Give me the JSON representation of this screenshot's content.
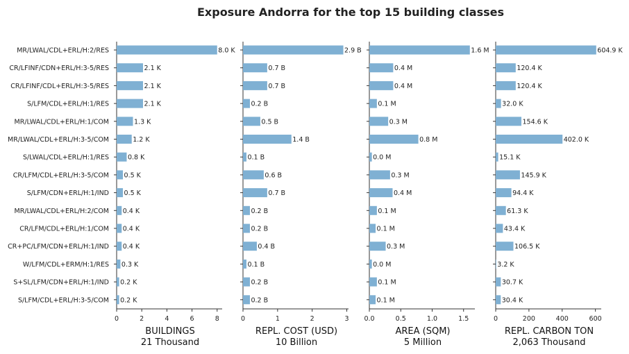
{
  "title": "Exposure Andorra for the top 15 building classes",
  "colors": {
    "bar": "#7fb0d3",
    "axis": "#333333",
    "text": "#222222"
  },
  "chart_data": {
    "type": "bar",
    "orientation": "horizontal",
    "title": "Exposure Andorra for the top 15 building classes",
    "categories": [
      "MR/LWAL/CDL+ERL/H:2/RES",
      "CR/LFINF/CDN+ERL/H:3-5/RES",
      "CR/LFINF/CDL+ERL/H:3-5/RES",
      "S/LFM/CDL+ERL/H:1/RES",
      "MR/LWAL/CDL+ERL/H:1/COM",
      "MR/LWAL/CDL+ERL/H:3-5/COM",
      "S/LWAL/CDL+ERL/H:1/RES",
      "CR/LFM/CDL+ERL/H:3-5/COM",
      "S/LFM/CDN+ERL/H:1/IND",
      "MR/LWAL/CDL+ERL/H:2/COM",
      "CR/LFM/CDL+ERL/H:1/COM",
      "CR+PC/LFM/CDN+ERL/H:1/IND",
      "W/LFM/CDL+ERM/H:1/RES",
      "S+SL/LFM/CDN+ERL/H:1/IND",
      "S/LFM/CDL+ERL/H:3-5/COM"
    ],
    "panels": [
      {
        "xlabel": "BUILDINGS",
        "total": "21 Thousand",
        "xlim": [
          0,
          8.4
        ],
        "ticks": [
          0,
          2,
          4,
          6,
          8
        ],
        "tick_labels": [
          "0",
          "2",
          "4",
          "6",
          "8"
        ],
        "values": [
          8.0,
          2.1,
          2.1,
          2.1,
          1.3,
          1.2,
          0.8,
          0.5,
          0.5,
          0.4,
          0.4,
          0.4,
          0.3,
          0.2,
          0.2
        ],
        "value_labels": [
          "8.0 K",
          "2.1 K",
          "2.1 K",
          "2.1 K",
          "1.3 K",
          "1.2 K",
          "0.8 K",
          "0.5 K",
          "0.5 K",
          "0.4 K",
          "0.4 K",
          "0.4 K",
          "0.3 K",
          "0.2 K",
          "0.2 K"
        ]
      },
      {
        "xlabel": "REPL. COST (USD)",
        "total": "10 Billion",
        "xlim": [
          0,
          3.05
        ],
        "ticks": [
          0,
          1,
          2,
          3
        ],
        "tick_labels": [
          "0",
          "1",
          "2",
          "3"
        ],
        "values": [
          2.9,
          0.7,
          0.7,
          0.2,
          0.5,
          1.4,
          0.1,
          0.6,
          0.7,
          0.2,
          0.2,
          0.4,
          0.1,
          0.2,
          0.2
        ],
        "value_labels": [
          "2.9 B",
          "0.7 B",
          "0.7 B",
          "0.2 B",
          "0.5 B",
          "1.4 B",
          "0.1 B",
          "0.6 B",
          "0.7 B",
          "0.2 B",
          "0.2 B",
          "0.4 B",
          "0.1 B",
          "0.2 B",
          "0.2 B"
        ]
      },
      {
        "xlabel": "AREA (SQM)",
        "total": "5 Million",
        "xlim": [
          0,
          1.68
        ],
        "ticks": [
          0,
          0.5,
          1.0,
          1.5
        ],
        "tick_labels": [
          "0.0",
          "0.5",
          "1.0",
          "1.5"
        ],
        "values": [
          1.6,
          0.38,
          0.38,
          0.12,
          0.3,
          0.78,
          0.04,
          0.33,
          0.37,
          0.12,
          0.1,
          0.26,
          0.04,
          0.12,
          0.1
        ],
        "value_labels": [
          "1.6 M",
          "0.4 M",
          "0.4 M",
          "0.1 M",
          "0.3 M",
          "0.8 M",
          "0.0 M",
          "0.3 M",
          "0.4 M",
          "0.1 M",
          "0.1 M",
          "0.3 M",
          "0.0 M",
          "0.1 M",
          "0.1 M"
        ]
      },
      {
        "xlabel": "REPL. CARBON TON",
        "total": "2,063 Thousand",
        "xlim": [
          0,
          635
        ],
        "ticks": [
          0,
          200,
          400,
          600
        ],
        "tick_labels": [
          "0",
          "200",
          "400",
          "600"
        ],
        "values": [
          604.9,
          120.4,
          120.4,
          32.0,
          154.6,
          402.0,
          15.1,
          145.9,
          94.4,
          61.3,
          43.4,
          106.5,
          3.2,
          30.7,
          30.4
        ],
        "value_labels": [
          "604.9 K",
          "120.4 K",
          "120.4 K",
          "32.0 K",
          "154.6 K",
          "402.0 K",
          "15.1 K",
          "145.9 K",
          "94.4 K",
          "61.3 K",
          "43.4 K",
          "106.5 K",
          "3.2 K",
          "30.7 K",
          "30.4 K"
        ]
      }
    ]
  }
}
